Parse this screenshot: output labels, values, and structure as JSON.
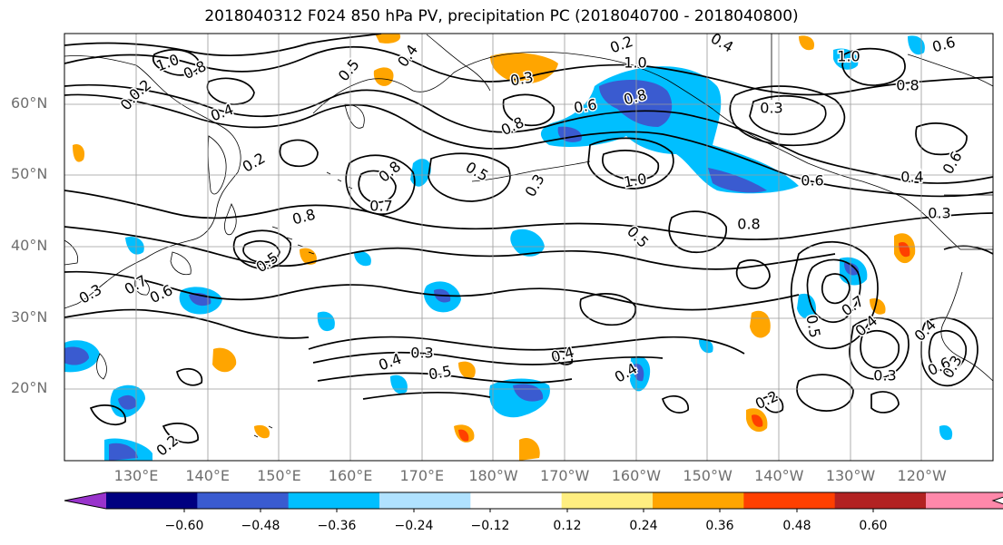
{
  "title": "2018040312 F024 850 hPa PV, precipitation PC (2018040700 - 2018040800)",
  "map": {
    "lat_labels": [
      "60°N",
      "50°N",
      "40°N",
      "30°N",
      "20°N"
    ],
    "lon_labels": [
      "130°E",
      "140°E",
      "150°E",
      "160°E",
      "170°E",
      "180°W",
      "170°W",
      "160°W",
      "150°W",
      "140°W",
      "130°W",
      "120°W"
    ],
    "contour_labels": [
      "1.0",
      "0.8",
      "0.4",
      "0.5",
      "0.4",
      "0.2",
      "0.4",
      "0.6",
      "1.0",
      "0.8",
      "0.6",
      "0.8",
      "0.3",
      "0.8",
      "0.7",
      "0.5",
      "0.3",
      "0.8",
      "0.3",
      "0.2",
      "1.0",
      "0.6",
      "0.4",
      "0.3",
      "0.5",
      "0.8",
      "0.3",
      "0.7",
      "0.6",
      "0.3",
      "0.2",
      "0.4",
      "0.3",
      "0.5",
      "0.5",
      "0.4",
      "0.4",
      "0.7",
      "0.4",
      "0.4",
      "0.5",
      "0.3",
      "0.6",
      "0.3",
      "0.2",
      "0.2",
      "1.0",
      "0.8",
      "0.6"
    ]
  },
  "colorbar": {
    "ticks": [
      "−0.60",
      "−0.48",
      "−0.36",
      "−0.24",
      "−0.12",
      "0.12",
      "0.24",
      "0.36",
      "0.48",
      "0.60"
    ],
    "colors": [
      "#9933cc",
      "#000080",
      "#3a5bd0",
      "#00bfff",
      "#b0e2ff",
      "#ffffff",
      "#ffee80",
      "#ffa500",
      "#ff4000",
      "#b22222",
      "#ff88aa"
    ]
  }
}
